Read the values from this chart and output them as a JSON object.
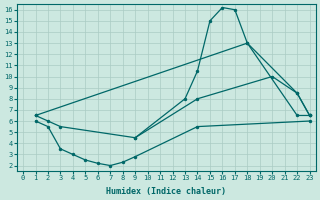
{
  "xlabel": "Humidex (Indice chaleur)",
  "bg_color": "#cce8e0",
  "grid_color": "#aaccc4",
  "line_color": "#006868",
  "xlim": [
    -0.5,
    23.5
  ],
  "ylim": [
    1.5,
    16.5
  ],
  "xticks": [
    0,
    1,
    2,
    3,
    4,
    5,
    6,
    7,
    8,
    9,
    10,
    11,
    12,
    13,
    14,
    15,
    16,
    17,
    18,
    19,
    20,
    21,
    22,
    23
  ],
  "yticks": [
    2,
    3,
    4,
    5,
    6,
    7,
    8,
    9,
    10,
    11,
    12,
    13,
    14,
    15,
    16
  ],
  "line1_x": [
    1,
    2,
    3,
    9,
    13,
    14,
    15,
    16,
    17,
    18,
    22,
    23
  ],
  "line1_y": [
    6.5,
    6.0,
    5.5,
    4.5,
    8.0,
    10.5,
    15.0,
    16.2,
    16.0,
    13.0,
    6.5,
    6.5
  ],
  "line2_x": [
    1,
    18,
    22,
    23
  ],
  "line2_y": [
    6.5,
    13.0,
    8.5,
    6.5
  ],
  "line3_x": [
    9,
    14,
    20,
    22,
    23
  ],
  "line3_y": [
    4.5,
    8.0,
    10.0,
    8.5,
    6.5
  ],
  "line4_x": [
    1,
    2,
    3,
    4,
    5,
    6,
    7,
    8,
    9,
    14,
    23
  ],
  "line4_y": [
    6.0,
    5.5,
    3.5,
    3.0,
    2.5,
    2.2,
    2.0,
    2.3,
    2.8,
    5.5,
    6.0
  ]
}
